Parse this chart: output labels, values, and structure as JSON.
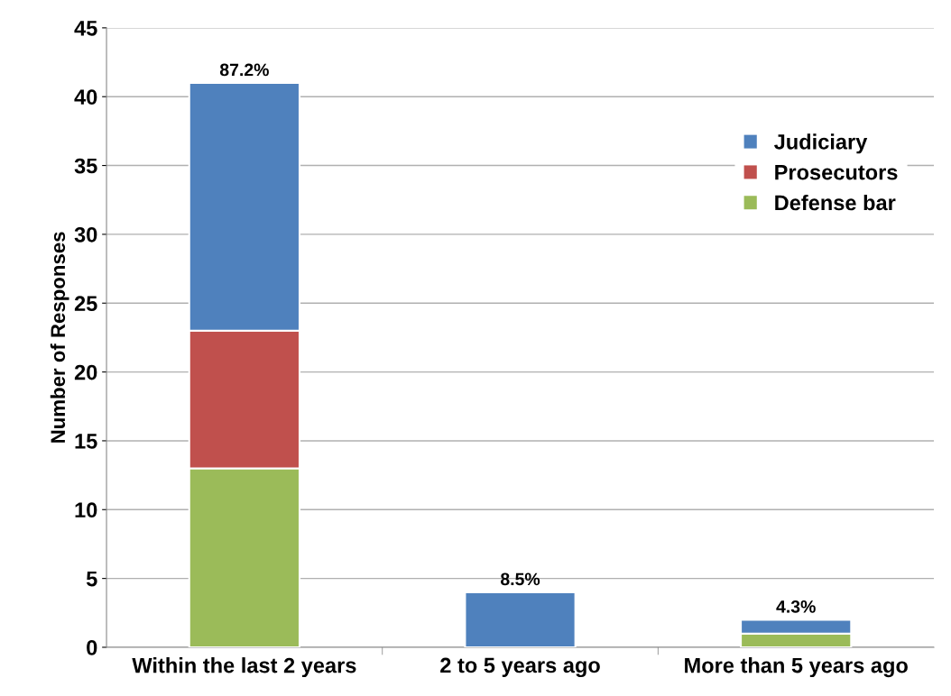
{
  "chart_data": {
    "type": "bar",
    "stacked": true,
    "ylabel": "Number of Responses",
    "categories": [
      "Within the last 2 years",
      "2 to 5 years ago",
      "More than 5 years ago"
    ],
    "series": [
      {
        "name": "Defense bar",
        "color": "#9bbb59",
        "values": [
          13,
          0,
          1
        ]
      },
      {
        "name": "Prosecutors",
        "color": "#c0504d",
        "values": [
          10,
          0,
          0
        ]
      },
      {
        "name": "Judiciary",
        "color": "#4f81bd",
        "values": [
          18,
          4,
          1
        ]
      }
    ],
    "annotations": [
      {
        "text": "87.2%",
        "x": "Within the last 2 years",
        "y": 41
      },
      {
        "text": "8.5%",
        "x": "2 to 5 years ago",
        "y": 4
      },
      {
        "text": "4.3%",
        "x": "More than 5 years ago",
        "y": 2
      }
    ],
    "ylim": [
      0,
      45
    ],
    "yticks": [
      0,
      5,
      10,
      15,
      20,
      25,
      30,
      35,
      40,
      45
    ],
    "grid": "y",
    "legend": "top right"
  }
}
